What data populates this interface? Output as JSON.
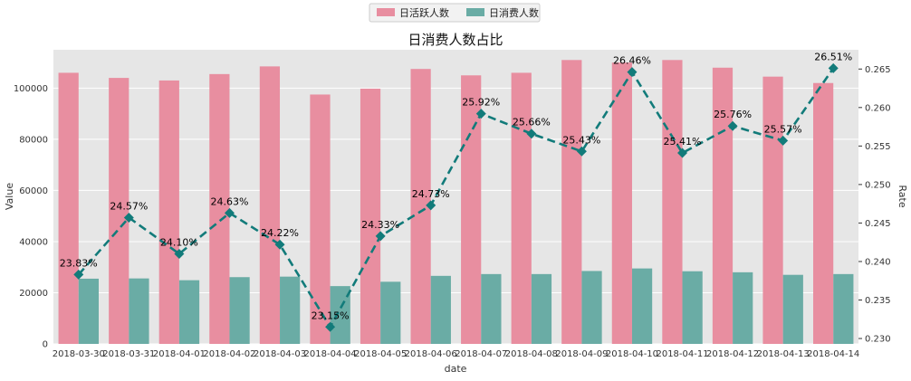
{
  "chart_data": {
    "type": "bar+line",
    "title": "日消费人数占比",
    "xlabel": "date",
    "ylabel_left": "Value",
    "ylabel_right": "Rate",
    "categories": [
      "2018-03-30",
      "2018-03-31",
      "2018-04-01",
      "2018-04-02",
      "2018-04-03",
      "2018-04-04",
      "2018-04-05",
      "2018-04-06",
      "2018-04-07",
      "2018-04-08",
      "2018-04-09",
      "2018-04-10",
      "2018-04-11",
      "2018-04-12",
      "2018-04-13",
      "2018-04-14"
    ],
    "series": [
      {
        "name": "日活跃人数",
        "type": "bar",
        "axis": "left",
        "color": "#e88ea0",
        "values": [
          106000,
          104000,
          103000,
          105500,
          108500,
          97500,
          99800,
          107500,
          105000,
          106000,
          111000,
          110000,
          111000,
          108000,
          104500,
          102000
        ]
      },
      {
        "name": "日消费人数",
        "type": "bar",
        "axis": "left",
        "color": "#6aaca5",
        "values": [
          25500,
          25600,
          24900,
          26100,
          26300,
          22600,
          24300,
          26600,
          27300,
          27300,
          28500,
          29500,
          28400,
          28000,
          27000,
          27300
        ]
      },
      {
        "name": "Rate",
        "type": "line",
        "axis": "right",
        "color": "#127b7a",
        "style": "dashed",
        "marker": "diamond",
        "values": [
          0.2383,
          0.2457,
          0.241,
          0.2463,
          0.2422,
          0.2315,
          0.2433,
          0.2473,
          0.2592,
          0.2566,
          0.2543,
          0.2646,
          0.2541,
          0.2576,
          0.2557,
          0.2651
        ],
        "labels": [
          "23.83%",
          "24.57%",
          "24.10%",
          "24.63%",
          "24.22%",
          "23.15%",
          "24.33%",
          "24.73%",
          "25.92%",
          "25.66%",
          "25.43%",
          "26.46%",
          "25.41%",
          "25.76%",
          "25.57%",
          "26.51%"
        ]
      }
    ],
    "ylim_left": [
      0,
      115000
    ],
    "yticks_left": [
      0,
      20000,
      40000,
      60000,
      80000,
      100000
    ],
    "ylim_right": [
      0.2293,
      0.2675
    ],
    "yticks_right": [
      0.23,
      0.235,
      0.24,
      0.245,
      0.25,
      0.255,
      0.26,
      0.265
    ],
    "ytick_labels_right": [
      "0.230",
      "0.235",
      "0.240",
      "0.245",
      "0.250",
      "0.255",
      "0.260",
      "0.265"
    ],
    "grid": true,
    "legend_position": "top-center"
  }
}
